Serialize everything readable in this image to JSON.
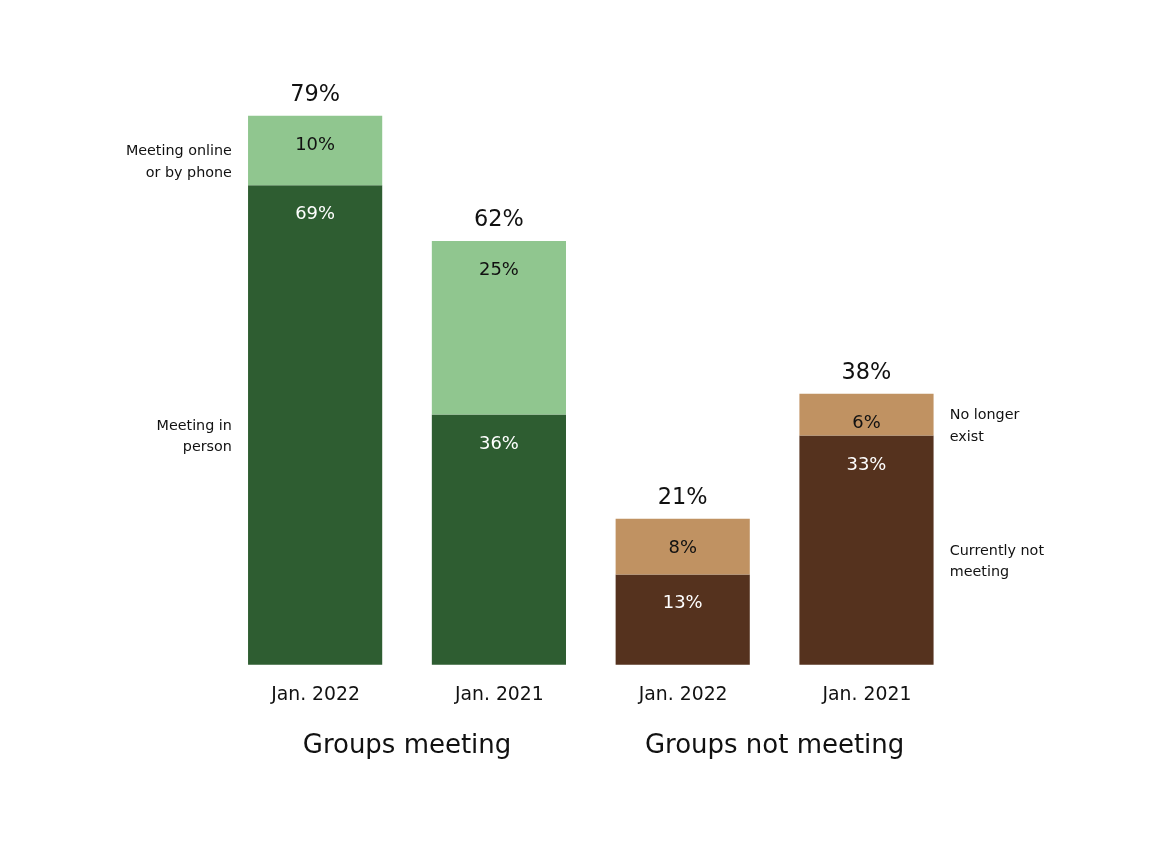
{
  "chart_data": {
    "type": "bar",
    "stacked": true,
    "categories": [
      "Jan. 2022",
      "Jan. 2021",
      "Jan. 2022",
      "Jan. 2021"
    ],
    "series": [
      {
        "name": "Meeting in person",
        "color": "#2e5d31",
        "values": [
          69,
          36,
          null,
          null
        ],
        "value_labels": [
          "69%",
          "36%",
          null,
          null
        ]
      },
      {
        "name": "Meeting online or by phone",
        "color": "#90c68f",
        "values": [
          10,
          25,
          null,
          null
        ],
        "value_labels": [
          "10%",
          "25%",
          null,
          null
        ]
      },
      {
        "name": "Currently not meeting",
        "color": "#55321e",
        "values": [
          null,
          null,
          13,
          33
        ],
        "value_labels": [
          null,
          null,
          "13%",
          "33%"
        ]
      },
      {
        "name": "No longer exist",
        "color": "#c09262",
        "values": [
          null,
          null,
          8,
          6
        ],
        "value_labels": [
          null,
          null,
          "8%",
          "6%"
        ]
      }
    ],
    "totals": [
      "79%",
      "62%",
      "21%",
      "38%"
    ],
    "annotations": [
      "Groups meeting",
      "Groups not meeting"
    ],
    "grid": false
  }
}
